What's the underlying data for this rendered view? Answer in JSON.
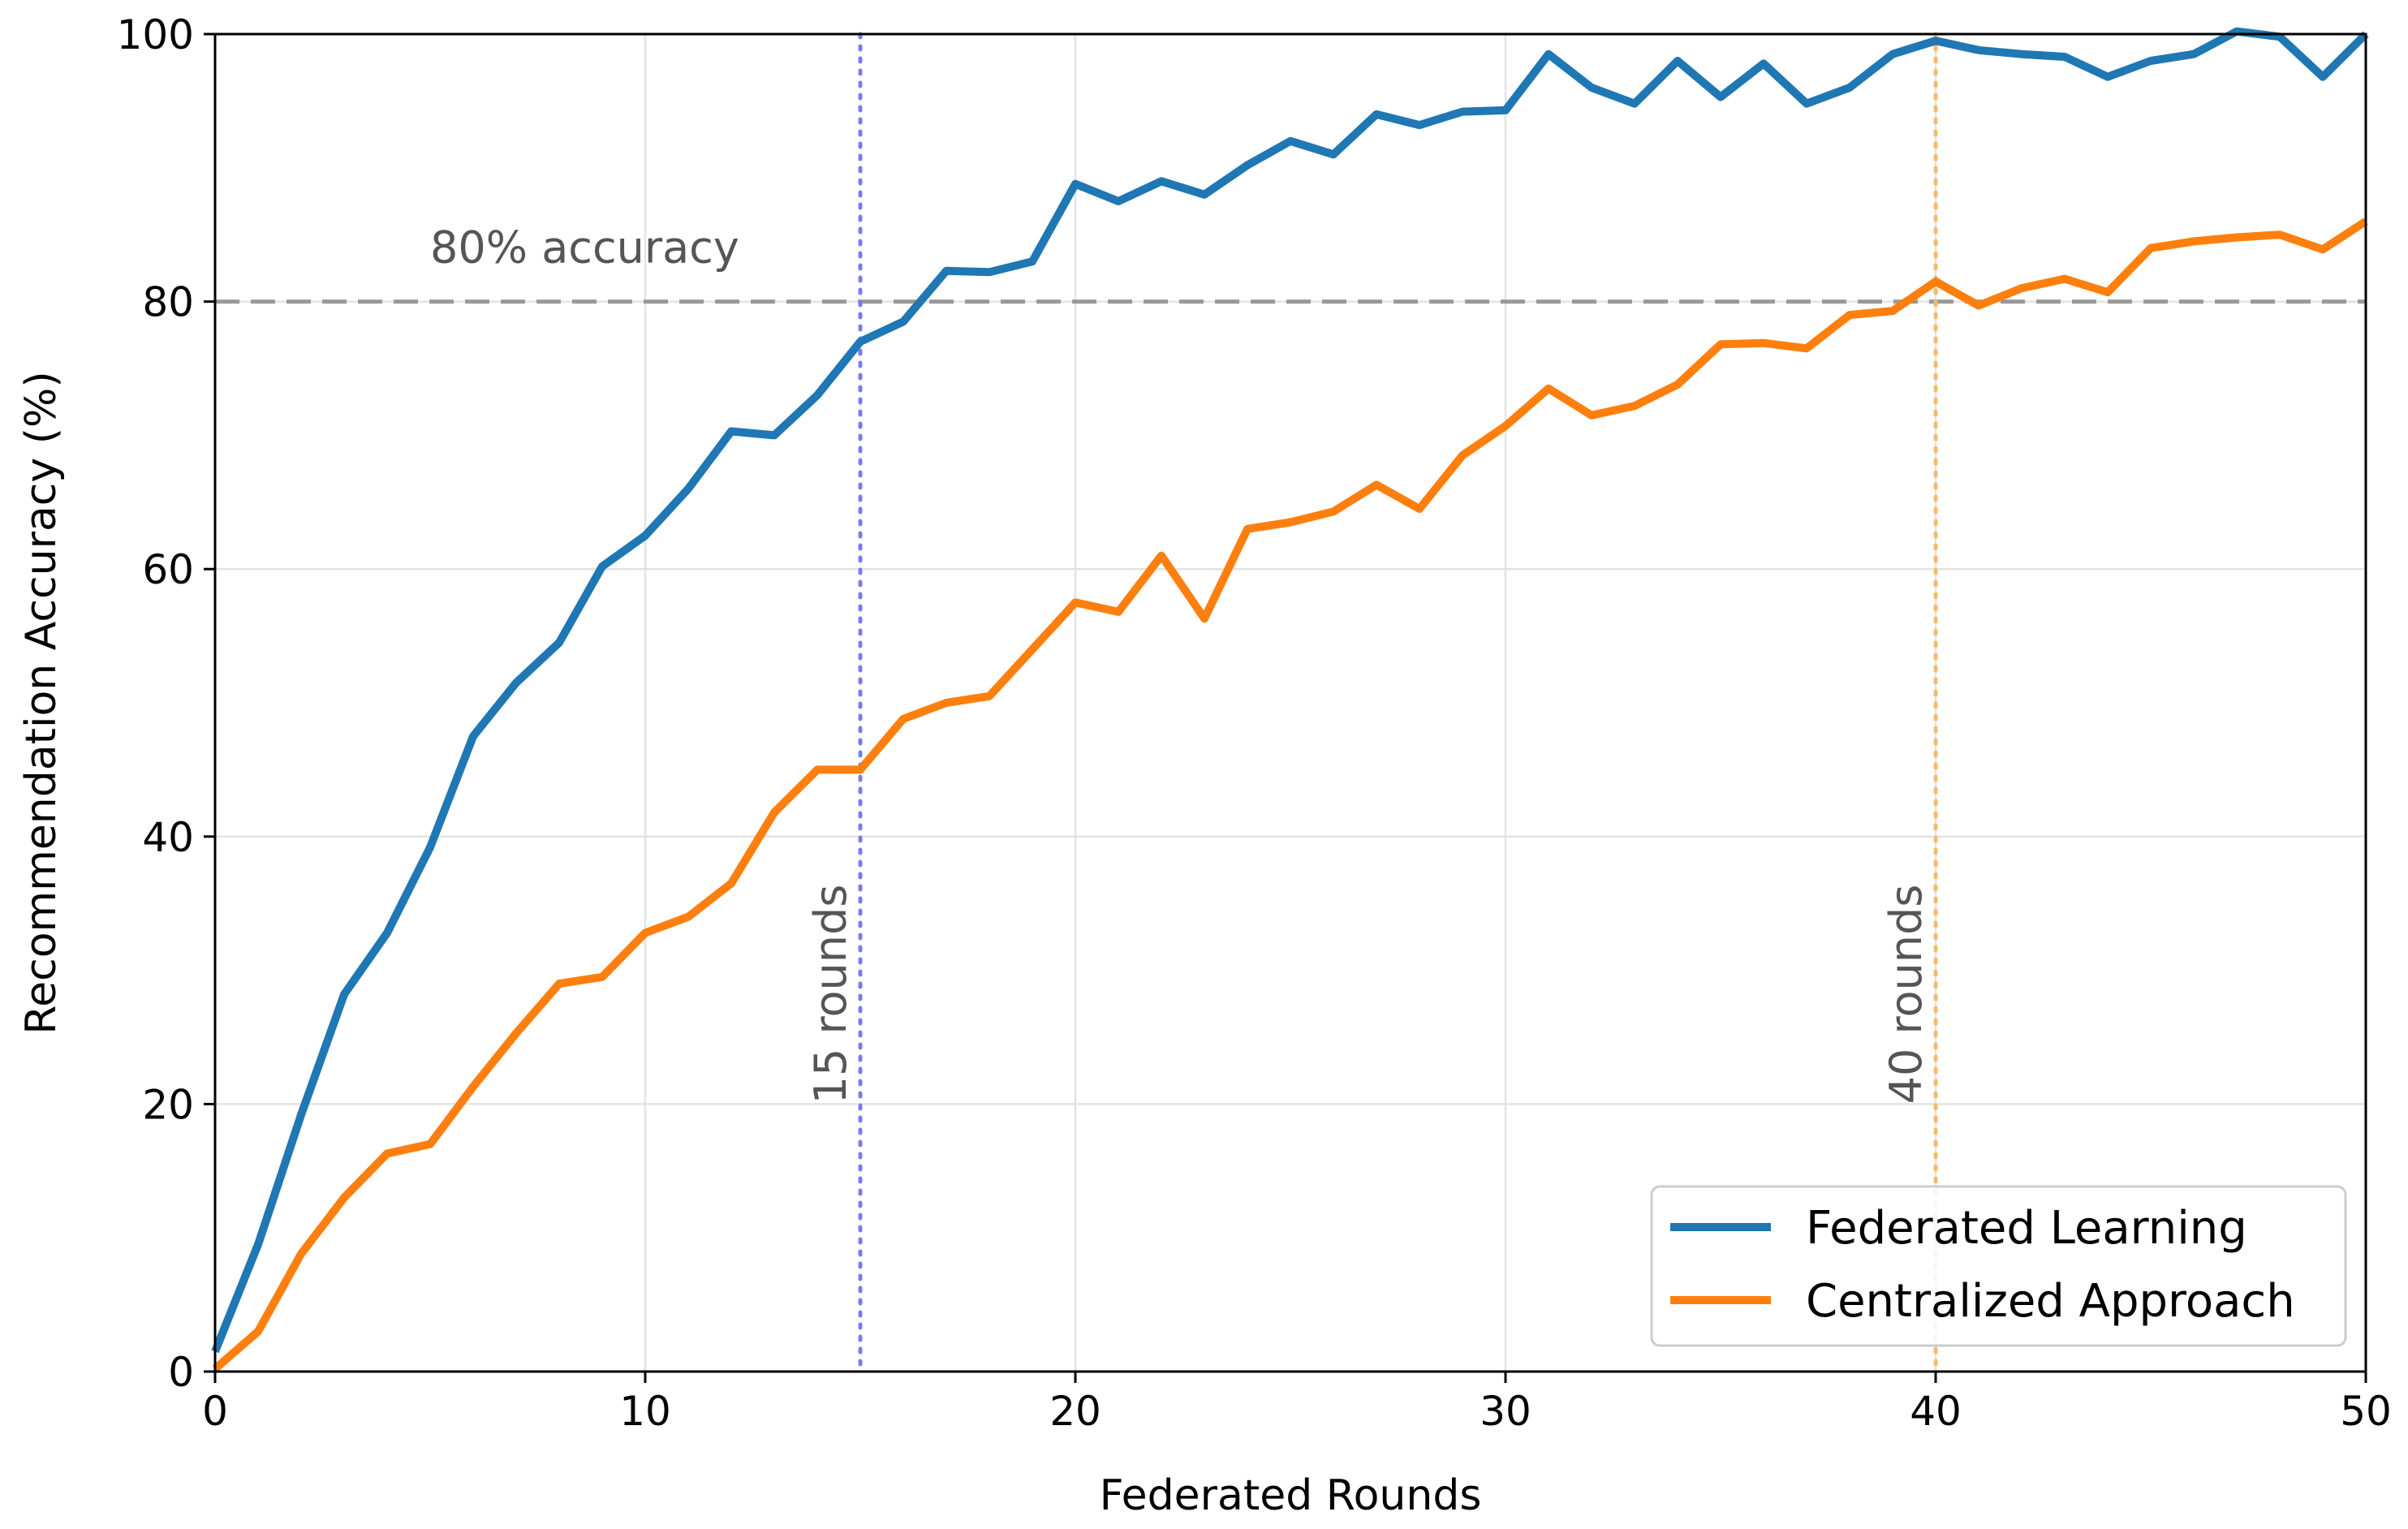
{
  "chart_data": {
    "type": "line",
    "title": "",
    "xlabel": "Federated Rounds",
    "ylabel": "Recommendation Accuracy (%)",
    "xlim": [
      0,
      50
    ],
    "ylim": [
      0,
      100
    ],
    "xticks": [
      0,
      10,
      20,
      30,
      40,
      50
    ],
    "yticks": [
      0,
      20,
      40,
      60,
      80,
      100
    ],
    "grid": true,
    "legend_position": "bottom-right",
    "x": [
      0,
      1,
      2,
      3,
      4,
      5,
      6,
      7,
      8,
      9,
      10,
      11,
      12,
      13,
      14,
      15,
      16,
      17,
      18,
      19,
      20,
      21,
      22,
      23,
      24,
      25,
      26,
      27,
      28,
      29,
      30,
      31,
      32,
      33,
      34,
      35,
      36,
      37,
      38,
      39,
      40,
      41,
      42,
      43,
      44,
      45,
      46,
      47,
      48,
      49,
      50
    ],
    "series": [
      {
        "name": "Federated Learning",
        "color": "#1f77b4",
        "values": [
          1.5,
          9.5,
          19.2,
          28.2,
          32.8,
          39.2,
          47.5,
          51.5,
          54.5,
          60.2,
          62.5,
          66.0,
          70.3,
          70.0,
          73.0,
          77.0,
          78.5,
          82.3,
          82.2,
          83.0,
          88.8,
          87.5,
          89.0,
          88.0,
          90.2,
          92.0,
          91.0,
          94.0,
          93.2,
          94.2,
          94.3,
          98.5,
          96.0,
          94.8,
          98.0,
          95.3,
          97.8,
          94.8,
          96.0,
          98.5,
          99.5,
          98.8,
          98.5,
          98.3,
          96.8,
          98.0,
          98.5,
          100.2,
          99.8,
          96.8,
          100.0
        ]
      },
      {
        "name": "Centralized Approach",
        "color": "#ff7f0e",
        "values": [
          0.2,
          3.0,
          8.8,
          13.0,
          16.3,
          17.0,
          21.3,
          25.3,
          29.0,
          29.5,
          32.8,
          34.0,
          36.5,
          41.8,
          45.0,
          45.0,
          48.8,
          50.0,
          50.5,
          54.0,
          57.5,
          56.8,
          61.0,
          56.3,
          63.0,
          63.5,
          64.3,
          66.3,
          64.5,
          68.5,
          70.7,
          73.5,
          71.5,
          72.2,
          73.8,
          76.8,
          76.9,
          76.5,
          79.0,
          79.3,
          81.5,
          79.7,
          81.0,
          81.7,
          80.7,
          84.0,
          84.5,
          84.8,
          85.0,
          83.9,
          86.0
        ]
      }
    ],
    "reference_lines": [
      {
        "orientation": "horizontal",
        "value": 80,
        "label": "80% accuracy",
        "color": "#999999",
        "style": "dashed"
      },
      {
        "orientation": "vertical",
        "value": 15,
        "label": "15 rounds",
        "color": "#7b7bef",
        "style": "dotted"
      },
      {
        "orientation": "vertical",
        "value": 40,
        "label": "40 rounds",
        "color": "#ffb866",
        "style": "dotted"
      }
    ]
  }
}
